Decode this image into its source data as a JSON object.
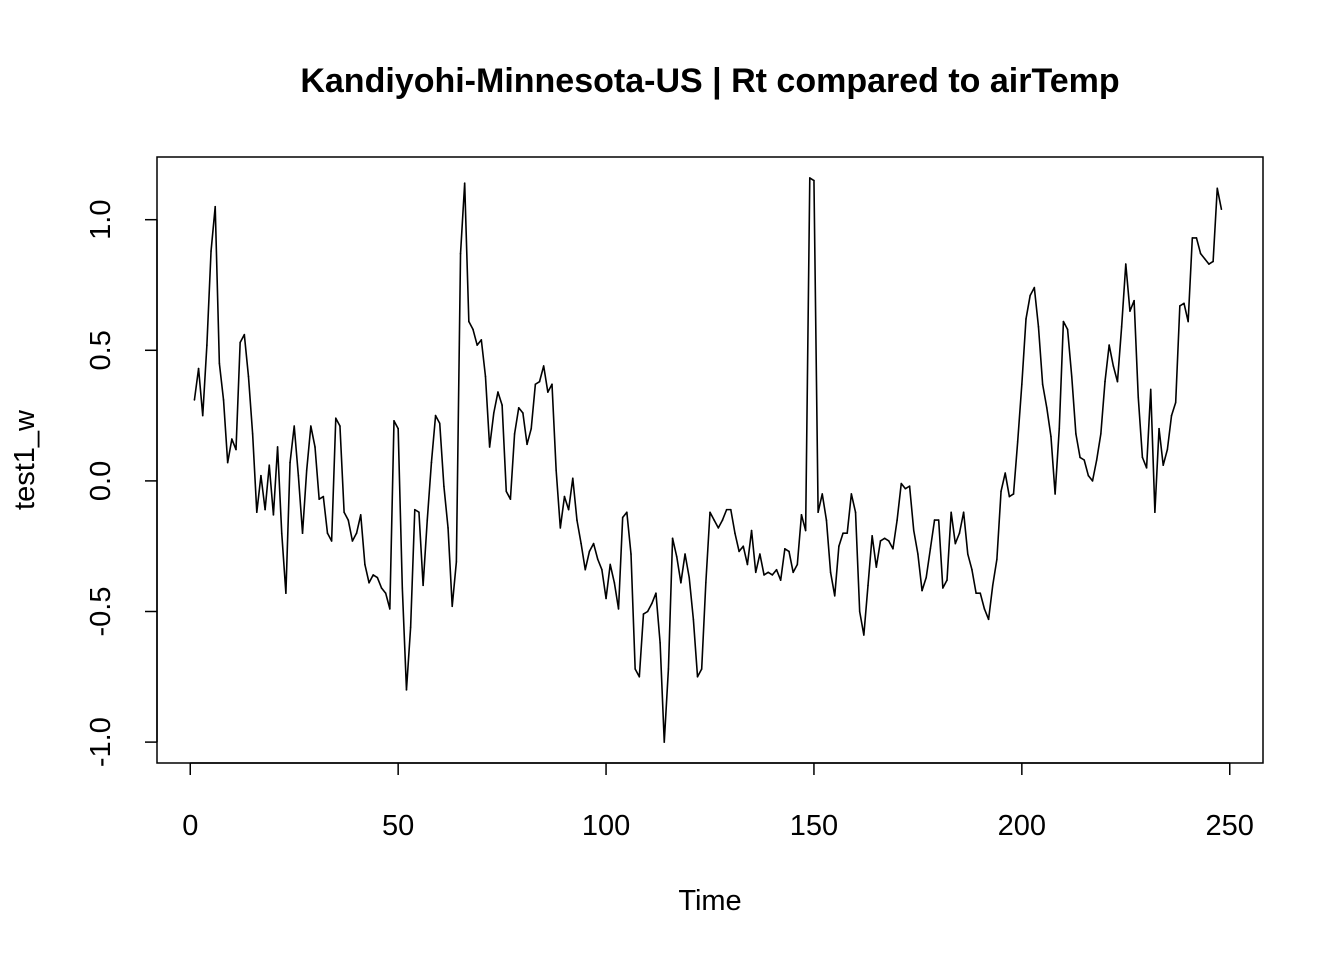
{
  "chart_data": {
    "type": "line",
    "title": "Kandiyohi-Minnesota-US | Rt compared to airTemp",
    "xlabel": "Time",
    "ylabel": "test1_w",
    "xlim": [
      -8,
      258
    ],
    "ylim": [
      -1.08,
      1.24
    ],
    "xticks": [
      0,
      50,
      100,
      150,
      200,
      250
    ],
    "yticks": [
      -1.0,
      -0.5,
      0.0,
      0.5,
      1.0
    ],
    "xtick_labels": [
      "0",
      "50",
      "100",
      "150",
      "200",
      "250"
    ],
    "ytick_labels": [
      "-1.0",
      "-0.5",
      "0.0",
      "0.5",
      "1.0"
    ],
    "grid": false,
    "legend": "none",
    "line_color": "#000000",
    "series": [
      {
        "x": [
          1,
          2,
          3,
          4,
          5,
          6,
          7,
          8,
          9,
          10,
          11,
          12,
          13,
          14,
          15,
          16,
          17,
          18,
          19,
          20,
          21,
          22,
          23,
          24,
          25,
          26,
          27,
          28,
          29,
          30,
          31,
          32,
          33,
          34,
          35,
          36,
          37,
          38,
          39,
          40,
          41,
          42,
          43,
          44,
          45,
          46,
          47,
          48,
          49,
          50,
          51,
          52,
          53,
          54,
          55,
          56,
          57,
          58,
          59,
          60,
          61,
          62,
          63,
          64,
          65,
          66,
          67,
          68,
          69,
          70,
          71,
          72,
          73,
          74,
          75,
          76,
          77,
          78,
          79,
          80,
          81,
          82,
          83,
          84,
          85,
          86,
          87,
          88,
          89,
          90,
          91,
          92,
          93,
          94,
          95,
          96,
          97,
          98,
          99,
          100,
          101,
          102,
          103,
          104,
          105,
          106,
          107,
          108,
          109,
          110,
          111,
          112,
          113,
          114,
          115,
          116,
          117,
          118,
          119,
          120,
          121,
          122,
          123,
          124,
          125,
          126,
          127,
          128,
          129,
          130,
          131,
          132,
          133,
          134,
          135,
          136,
          137,
          138,
          139,
          140,
          141,
          142,
          143,
          144,
          145,
          146,
          147,
          148,
          149,
          150,
          151,
          152,
          153,
          154,
          155,
          156,
          157,
          158,
          159,
          160,
          161,
          162,
          163,
          164,
          165,
          166,
          167,
          168,
          169,
          170,
          171,
          172,
          173,
          174,
          175,
          176,
          177,
          178,
          179,
          180,
          181,
          182,
          183,
          184,
          185,
          186,
          187,
          188,
          189,
          190,
          191,
          192,
          193,
          194,
          195,
          196,
          197,
          198,
          199,
          200,
          201,
          202,
          203,
          204,
          205,
          206,
          207,
          208,
          209,
          210,
          211,
          212,
          213,
          214,
          215,
          216,
          217,
          218,
          219,
          220,
          221,
          222,
          223,
          224,
          225,
          226,
          227,
          228,
          229,
          230,
          231,
          232,
          233,
          234,
          235,
          236,
          237,
          238,
          239,
          240,
          241,
          242,
          243,
          244,
          245,
          246,
          247,
          248
        ],
        "y": [
          0.31,
          0.43,
          0.25,
          0.52,
          0.88,
          1.05,
          0.45,
          0.31,
          0.07,
          0.16,
          0.12,
          0.53,
          0.56,
          0.4,
          0.18,
          -0.12,
          0.02,
          -0.11,
          0.06,
          -0.13,
          0.13,
          -0.2,
          -0.43,
          0.07,
          0.21,
          0.02,
          -0.2,
          0.04,
          0.21,
          0.13,
          -0.07,
          -0.06,
          -0.2,
          -0.23,
          0.24,
          0.21,
          -0.12,
          -0.15,
          -0.23,
          -0.2,
          -0.13,
          -0.32,
          -0.39,
          -0.36,
          -0.37,
          -0.41,
          -0.43,
          -0.49,
          0.23,
          0.2,
          -0.41,
          -0.8,
          -0.56,
          -0.11,
          -0.12,
          -0.4,
          -0.15,
          0.07,
          0.25,
          0.22,
          -0.02,
          -0.18,
          -0.48,
          -0.31,
          0.87,
          1.14,
          0.61,
          0.58,
          0.52,
          0.54,
          0.4,
          0.13,
          0.26,
          0.34,
          0.29,
          -0.04,
          -0.07,
          0.18,
          0.28,
          0.26,
          0.14,
          0.2,
          0.37,
          0.38,
          0.44,
          0.34,
          0.37,
          0.04,
          -0.18,
          -0.06,
          -0.11,
          0.01,
          -0.15,
          -0.24,
          -0.34,
          -0.27,
          -0.24,
          -0.3,
          -0.34,
          -0.45,
          -0.32,
          -0.39,
          -0.49,
          -0.14,
          -0.12,
          -0.28,
          -0.72,
          -0.75,
          -0.51,
          -0.5,
          -0.47,
          -0.43,
          -0.62,
          -1.0,
          -0.72,
          -0.22,
          -0.29,
          -0.39,
          -0.28,
          -0.37,
          -0.53,
          -0.75,
          -0.72,
          -0.39,
          -0.12,
          -0.15,
          -0.18,
          -0.15,
          -0.11,
          -0.11,
          -0.2,
          -0.27,
          -0.25,
          -0.32,
          -0.19,
          -0.35,
          -0.28,
          -0.36,
          -0.35,
          -0.36,
          -0.34,
          -0.38,
          -0.26,
          -0.27,
          -0.35,
          -0.32,
          -0.13,
          -0.19,
          1.16,
          1.15,
          -0.12,
          -0.05,
          -0.15,
          -0.35,
          -0.44,
          -0.25,
          -0.2,
          -0.2,
          -0.05,
          -0.12,
          -0.5,
          -0.59,
          -0.4,
          -0.21,
          -0.33,
          -0.23,
          -0.22,
          -0.23,
          -0.26,
          -0.15,
          -0.01,
          -0.03,
          -0.02,
          -0.19,
          -0.28,
          -0.42,
          -0.37,
          -0.26,
          -0.15,
          -0.15,
          -0.41,
          -0.38,
          -0.12,
          -0.24,
          -0.2,
          -0.12,
          -0.28,
          -0.34,
          -0.43,
          -0.43,
          -0.49,
          -0.53,
          -0.4,
          -0.3,
          -0.04,
          0.03,
          -0.06,
          -0.05,
          0.15,
          0.37,
          0.62,
          0.71,
          0.74,
          0.59,
          0.37,
          0.28,
          0.17,
          -0.05,
          0.2,
          0.61,
          0.58,
          0.4,
          0.18,
          0.09,
          0.08,
          0.02,
          0.0,
          0.08,
          0.18,
          0.38,
          0.52,
          0.44,
          0.38,
          0.59,
          0.83,
          0.65,
          0.69,
          0.32,
          0.09,
          0.05,
          0.35,
          -0.12,
          0.2,
          0.06,
          0.12,
          0.25,
          0.3,
          0.67,
          0.68,
          0.61,
          0.93,
          0.93,
          0.87,
          0.85,
          0.83,
          0.84,
          1.12,
          1.04
        ]
      }
    ]
  }
}
